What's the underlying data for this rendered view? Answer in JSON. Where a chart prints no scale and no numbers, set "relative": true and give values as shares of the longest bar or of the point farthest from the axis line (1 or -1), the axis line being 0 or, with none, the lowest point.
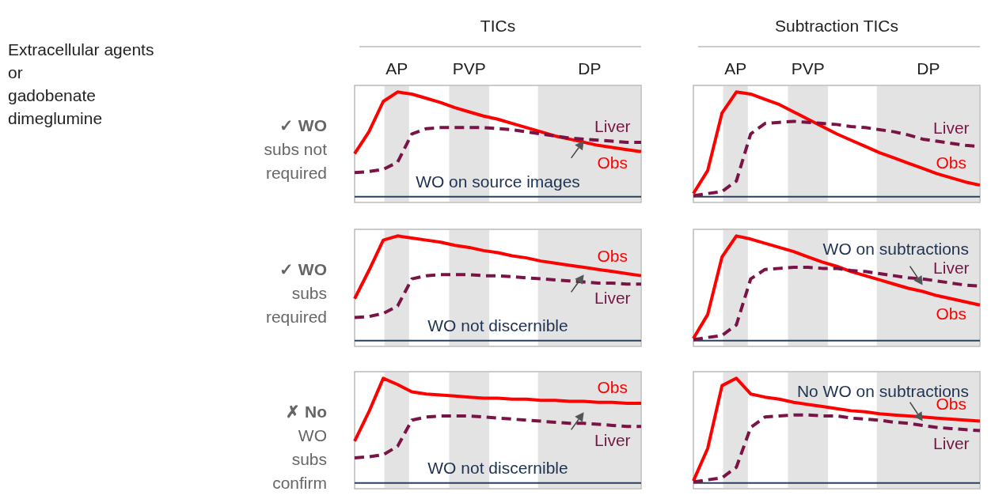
{
  "chart_data": [
    {
      "type": "line",
      "title": "TICs",
      "relative": true,
      "categories": [
        null,
        null,
        null,
        null,
        null,
        null,
        null,
        null,
        null,
        null,
        null,
        null,
        null,
        null,
        null,
        null,
        null,
        null,
        null,
        null,
        null
      ],
      "annotations": [
        "AP",
        "PVP",
        "DP",
        "Extracellular agents\nor\ngadobenate\ndimeglumine",
        "✓ WO\nsubs not\nrequired",
        "WO on source images"
      ],
      "series": [
        {
          "name": "Obs",
          "color": "#ff0000",
          "values": [
            0.41,
            0.62,
            0.91,
            1.0,
            0.98,
            0.94,
            0.9,
            0.85,
            0.81,
            0.77,
            0.74,
            0.7,
            0.66,
            0.62,
            0.58,
            0.55,
            0.52,
            0.49,
            0.47,
            0.45,
            0.43
          ]
        },
        {
          "name": "Liver",
          "color": "#7a1446",
          "line_style": "dashed",
          "values": [
            0.23,
            0.24,
            0.26,
            0.33,
            0.6,
            0.65,
            0.66,
            0.66,
            0.66,
            0.66,
            0.65,
            0.64,
            0.62,
            0.6,
            0.58,
            0.56,
            0.55,
            0.54,
            0.53,
            0.52,
            0.52
          ]
        }
      ]
    },
    {
      "type": "line",
      "title": "Subtraction TICs",
      "relative": true,
      "categories": [
        null,
        null,
        null,
        null,
        null,
        null,
        null,
        null,
        null,
        null,
        null,
        null,
        null,
        null,
        null,
        null,
        null,
        null,
        null,
        null,
        null
      ],
      "annotations": [
        "AP",
        "PVP",
        "DP"
      ],
      "series": [
        {
          "name": "Obs",
          "color": "#ff0000",
          "values": [
            0.03,
            0.25,
            0.8,
            1.0,
            0.98,
            0.93,
            0.88,
            0.81,
            0.74,
            0.67,
            0.6,
            0.54,
            0.48,
            0.42,
            0.37,
            0.32,
            0.27,
            0.22,
            0.18,
            0.14,
            0.11
          ]
        },
        {
          "name": "Liver",
          "color": "#7a1446",
          "line_style": "dashed",
          "values": [
            0.01,
            0.03,
            0.05,
            0.15,
            0.6,
            0.7,
            0.71,
            0.72,
            0.71,
            0.7,
            0.69,
            0.67,
            0.66,
            0.64,
            0.62,
            0.59,
            0.55,
            0.53,
            0.51,
            0.49,
            0.48
          ]
        }
      ]
    },
    {
      "type": "line",
      "relative": true,
      "categories": [
        null,
        null,
        null,
        null,
        null,
        null,
        null,
        null,
        null,
        null,
        null,
        null,
        null,
        null,
        null,
        null,
        null,
        null,
        null,
        null,
        null
      ],
      "annotations": [
        "✓ WO\nsubs\nrequired",
        "WO not discernible"
      ],
      "series": [
        {
          "name": "Obs",
          "color": "#ff0000",
          "values": [
            0.4,
            0.67,
            0.96,
            1.0,
            0.98,
            0.96,
            0.94,
            0.91,
            0.89,
            0.86,
            0.84,
            0.81,
            0.79,
            0.76,
            0.74,
            0.72,
            0.7,
            0.68,
            0.66,
            0.64,
            0.62
          ]
        },
        {
          "name": "Liver",
          "color": "#7a1446",
          "line_style": "dashed",
          "values": [
            0.22,
            0.23,
            0.26,
            0.33,
            0.59,
            0.62,
            0.63,
            0.63,
            0.63,
            0.62,
            0.62,
            0.61,
            0.6,
            0.59,
            0.58,
            0.57,
            0.56,
            0.55,
            0.55,
            0.54,
            0.54
          ]
        }
      ]
    },
    {
      "type": "line",
      "relative": true,
      "categories": [
        null,
        null,
        null,
        null,
        null,
        null,
        null,
        null,
        null,
        null,
        null,
        null,
        null,
        null,
        null,
        null,
        null,
        null,
        null,
        null,
        null
      ],
      "annotations": [
        "WO on subtractions"
      ],
      "series": [
        {
          "name": "Obs",
          "color": "#ff0000",
          "values": [
            0.02,
            0.25,
            0.8,
            1.0,
            0.97,
            0.93,
            0.89,
            0.85,
            0.8,
            0.75,
            0.71,
            0.66,
            0.62,
            0.58,
            0.54,
            0.5,
            0.47,
            0.43,
            0.4,
            0.37,
            0.34
          ]
        },
        {
          "name": "Liver",
          "color": "#7a1446",
          "line_style": "dashed",
          "values": [
            0.01,
            0.03,
            0.05,
            0.15,
            0.59,
            0.68,
            0.69,
            0.7,
            0.7,
            0.69,
            0.69,
            0.67,
            0.66,
            0.64,
            0.62,
            0.6,
            0.59,
            0.57,
            0.55,
            0.53,
            0.52
          ]
        }
      ]
    },
    {
      "type": "line",
      "relative": true,
      "categories": [
        null,
        null,
        null,
        null,
        null,
        null,
        null,
        null,
        null,
        null,
        null,
        null,
        null,
        null,
        null,
        null,
        null,
        null,
        null,
        null,
        null
      ],
      "annotations": [
        "✗ No\nWO\nsubs\nconfirm",
        "WO not discernible"
      ],
      "series": [
        {
          "name": "Obs",
          "color": "#ff0000",
          "values": [
            0.4,
            0.68,
            1.0,
            0.94,
            0.87,
            0.85,
            0.84,
            0.83,
            0.82,
            0.81,
            0.81,
            0.8,
            0.8,
            0.79,
            0.79,
            0.78,
            0.78,
            0.77,
            0.77,
            0.76,
            0.76
          ]
        },
        {
          "name": "Liver",
          "color": "#7a1446",
          "line_style": "dashed",
          "values": [
            0.24,
            0.25,
            0.27,
            0.35,
            0.6,
            0.63,
            0.64,
            0.64,
            0.64,
            0.63,
            0.62,
            0.61,
            0.6,
            0.59,
            0.58,
            0.57,
            0.57,
            0.56,
            0.55,
            0.54,
            0.54
          ]
        }
      ]
    },
    {
      "type": "line",
      "relative": true,
      "categories": [
        null,
        null,
        null,
        null,
        null,
        null,
        null,
        null,
        null,
        null,
        null,
        null,
        null,
        null,
        null,
        null,
        null,
        null,
        null,
        null,
        null
      ],
      "annotations": [
        "No WO on subtractions"
      ],
      "series": [
        {
          "name": "Obs",
          "color": "#ff0000",
          "values": [
            0.02,
            0.33,
            0.93,
            1.0,
            0.85,
            0.82,
            0.8,
            0.77,
            0.75,
            0.73,
            0.71,
            0.69,
            0.68,
            0.66,
            0.65,
            0.64,
            0.63,
            0.62,
            0.61,
            0.6,
            0.59
          ]
        },
        {
          "name": "Liver",
          "color": "#7a1446",
          "line_style": "dashed",
          "values": [
            0.01,
            0.03,
            0.05,
            0.15,
            0.53,
            0.63,
            0.64,
            0.65,
            0.65,
            0.64,
            0.64,
            0.62,
            0.61,
            0.6,
            0.58,
            0.57,
            0.55,
            0.53,
            0.52,
            0.51,
            0.5
          ]
        }
      ]
    }
  ]
}
